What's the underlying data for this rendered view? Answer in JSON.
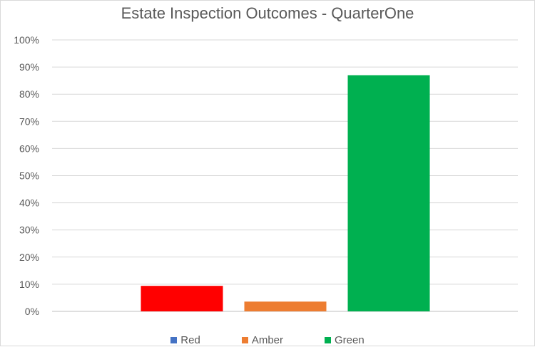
{
  "chart_data": {
    "type": "bar",
    "title": "Estate Inspection Outcomes - QuarterOne",
    "xlabel": "",
    "ylabel": "",
    "ylim": [
      0,
      1
    ],
    "y_ticks": [
      {
        "value": 0.0,
        "label": "0%"
      },
      {
        "value": 0.1,
        "label": "10%"
      },
      {
        "value": 0.2,
        "label": "20%"
      },
      {
        "value": 0.3,
        "label": "30%"
      },
      {
        "value": 0.4,
        "label": "40%"
      },
      {
        "value": 0.5,
        "label": "50%"
      },
      {
        "value": 0.6,
        "label": "60%"
      },
      {
        "value": 0.7,
        "label": "70%"
      },
      {
        "value": 0.8,
        "label": "80%"
      },
      {
        "value": 0.9,
        "label": "90%"
      },
      {
        "value": 1.0,
        "label": "100%"
      }
    ],
    "grid": true,
    "legend_position": "bottom",
    "bars": [
      {
        "name": "Red",
        "value": 0.094,
        "color": "#ff0000"
      },
      {
        "name": "Amber",
        "value": 0.036,
        "color": "#ed7d31"
      },
      {
        "name": "Green",
        "value": 0.87,
        "color": "#00b050"
      }
    ],
    "legend": [
      {
        "name": "Red",
        "color": "#4472c4"
      },
      {
        "name": "Amber",
        "color": "#ed7d31"
      },
      {
        "name": "Green",
        "color": "#00b050"
      }
    ]
  }
}
